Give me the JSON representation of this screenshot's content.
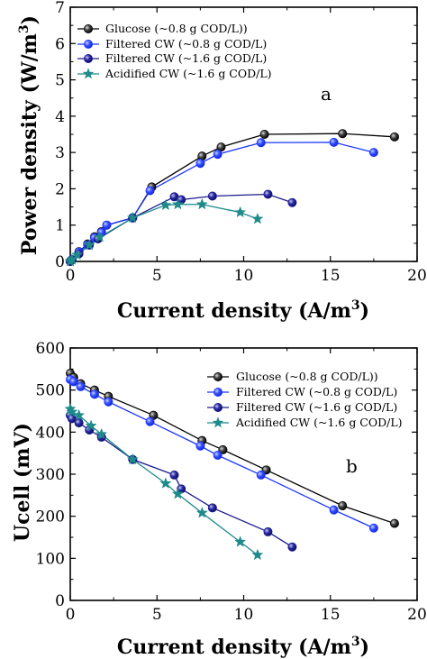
{
  "chart_data": [
    {
      "type": "line",
      "panel_label": "a",
      "xlabel": "Current density (A/m",
      "xlabel_sup": "3",
      "xlabel_end": ")",
      "ylabel": "Power density (W/m",
      "ylabel_sup": "3",
      "ylabel_end": ")",
      "xlim": [
        0,
        20
      ],
      "ylim": [
        0,
        7
      ],
      "xticks": [
        0,
        5,
        10,
        15,
        20
      ],
      "yticks": [
        0,
        1,
        2,
        3,
        4,
        5,
        6,
        7
      ],
      "grid": false,
      "legend_position": "top-left",
      "series": [
        {
          "name": "Glucose (~0.8 g COD/L))",
          "color": "#000000",
          "marker": "circle",
          "x": [
            0,
            0.1,
            0.5,
            1.0,
            1.4,
            1.8,
            2.1,
            3.6,
            4.7,
            7.6,
            8.7,
            11.2,
            15.7,
            18.7
          ],
          "y": [
            0.0,
            0.05,
            0.27,
            0.48,
            0.68,
            0.82,
            1.0,
            1.2,
            2.05,
            2.9,
            3.15,
            3.5,
            3.52,
            3.43
          ]
        },
        {
          "name": "Filtered CW (~0.8 g COD/L)",
          "color": "#1a35ff",
          "marker": "circle",
          "x": [
            0,
            0.1,
            0.5,
            1.0,
            1.4,
            1.8,
            2.1,
            3.6,
            4.6,
            7.5,
            8.5,
            11.0,
            15.2,
            17.5
          ],
          "y": [
            0.0,
            0.05,
            0.26,
            0.46,
            0.65,
            0.8,
            1.0,
            1.2,
            1.95,
            2.7,
            2.95,
            3.27,
            3.28,
            3.0
          ]
        },
        {
          "name": "Filtered CW (~1.6 g COD/L)",
          "color": "#1a1a8c",
          "marker": "circle",
          "x": [
            0,
            0.1,
            0.5,
            1.1,
            1.6,
            3.6,
            6.0,
            6.4,
            8.2,
            11.4,
            12.8
          ],
          "y": [
            0.0,
            0.04,
            0.21,
            0.45,
            0.62,
            1.2,
            1.78,
            1.7,
            1.8,
            1.85,
            1.62
          ]
        },
        {
          "name": "Acidified CW (~1.6 g COD/L)",
          "color": "#1e8a8a",
          "marker": "star",
          "x": [
            0,
            0.1,
            0.4,
            1.1,
            1.7,
            3.6,
            5.5,
            6.2,
            7.6,
            9.8,
            10.8
          ],
          "y": [
            0.0,
            0.05,
            0.18,
            0.45,
            0.67,
            1.2,
            1.55,
            1.57,
            1.57,
            1.35,
            1.17
          ]
        }
      ]
    },
    {
      "type": "line",
      "panel_label": "b",
      "xlabel": "Current density (A/m",
      "xlabel_sup": "3",
      "xlabel_end": ")",
      "ylabel": "Ucell (mV)",
      "xlim": [
        0,
        20
      ],
      "ylim": [
        0,
        600
      ],
      "xticks": [
        0,
        5,
        10,
        15,
        20
      ],
      "yticks": [
        0,
        100,
        200,
        300,
        400,
        500,
        600
      ],
      "grid": false,
      "legend_position": "top-right",
      "series": [
        {
          "name": "Glucose (~0.8 g COD/L))",
          "color": "#000000",
          "marker": "circle",
          "x": [
            0,
            0.2,
            0.6,
            1.4,
            2.2,
            4.8,
            7.6,
            8.8,
            11.3,
            15.7,
            18.7
          ],
          "y": [
            540,
            530,
            515,
            500,
            485,
            440,
            380,
            358,
            310,
            225,
            183
          ]
        },
        {
          "name": "Filtered CW (~0.8 g COD/L)",
          "color": "#1a35ff",
          "marker": "circle",
          "x": [
            0,
            0.2,
            0.6,
            1.4,
            2.2,
            4.6,
            7.5,
            8.5,
            11.0,
            15.2,
            17.5
          ],
          "y": [
            525,
            520,
            508,
            490,
            472,
            425,
            367,
            345,
            298,
            215,
            172
          ]
        },
        {
          "name": "Filtered CW (~1.6 g COD/L)",
          "color": "#1a1a8c",
          "marker": "circle",
          "x": [
            0,
            0.1,
            0.5,
            1.1,
            1.8,
            3.6,
            6.0,
            6.4,
            8.2,
            11.4,
            12.8
          ],
          "y": [
            440,
            432,
            422,
            405,
            388,
            335,
            298,
            265,
            220,
            163,
            127
          ]
        },
        {
          "name": "Acidified CW (~1.6 g COD/L)",
          "color": "#1e8a8a",
          "marker": "star",
          "x": [
            0,
            0.1,
            0.5,
            1.2,
            1.8,
            3.6,
            5.5,
            6.2,
            7.6,
            9.8,
            10.8
          ],
          "y": [
            455,
            448,
            440,
            415,
            395,
            335,
            278,
            253,
            208,
            139,
            108
          ]
        }
      ]
    }
  ]
}
